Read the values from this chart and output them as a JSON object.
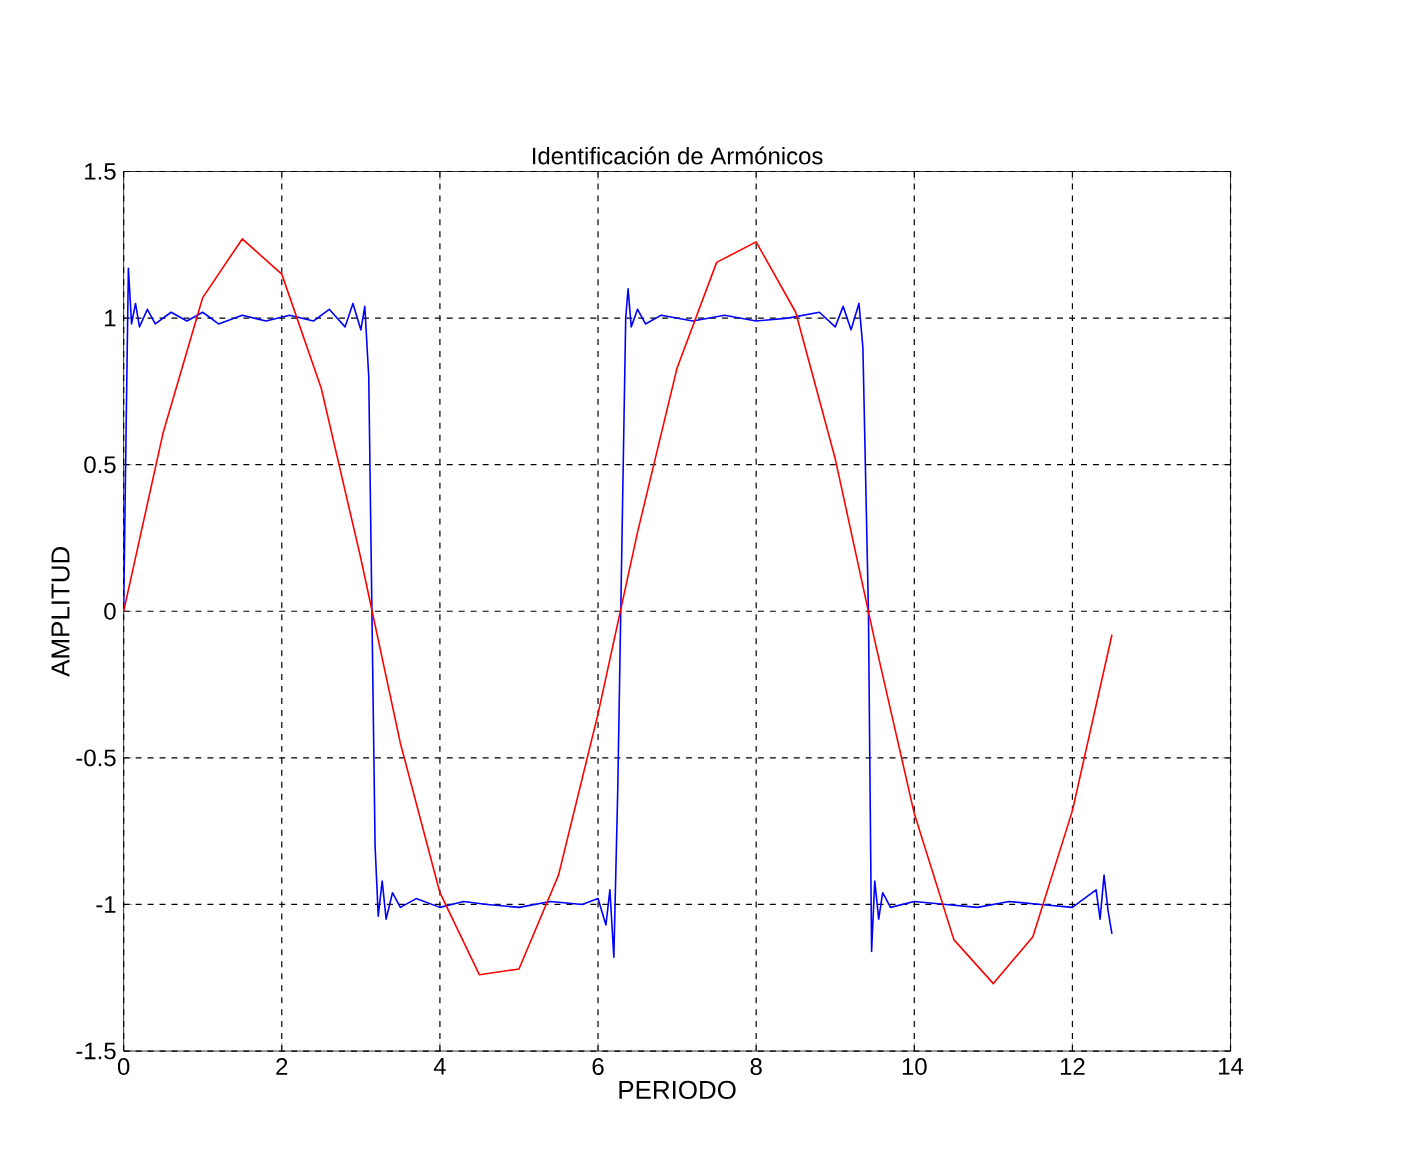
{
  "chart_data": {
    "type": "line",
    "title": "Identificación de Armónicos",
    "xlabel": "PERIODO",
    "ylabel": "AMPLITUD",
    "xlim": [
      0,
      14
    ],
    "ylim": [
      -1.5,
      1.5
    ],
    "xticks": [
      0,
      2,
      4,
      6,
      8,
      10,
      12,
      14
    ],
    "yticks": [
      -1.5,
      -1,
      -0.5,
      0,
      0.5,
      1,
      1.5
    ],
    "grid": true,
    "series": [
      {
        "color": "#0000ff",
        "x": [
          0,
          0.03,
          0.06,
          0.1,
          0.15,
          0.2,
          0.3,
          0.4,
          0.6,
          0.8,
          1.0,
          1.2,
          1.5,
          1.8,
          2.1,
          2.4,
          2.6,
          2.8,
          2.9,
          3.0,
          3.05,
          3.1,
          3.14,
          3.18,
          3.22,
          3.27,
          3.32,
          3.4,
          3.5,
          3.7,
          4.0,
          4.3,
          4.6,
          5.0,
          5.4,
          5.8,
          6.0,
          6.1,
          6.15,
          6.2,
          6.25,
          6.3,
          6.35,
          6.38,
          6.42,
          6.5,
          6.6,
          6.8,
          7.2,
          7.6,
          8.0,
          8.4,
          8.8,
          9.0,
          9.1,
          9.2,
          9.3,
          9.35,
          9.42,
          9.46,
          9.5,
          9.55,
          9.6,
          9.7,
          10.0,
          10.4,
          10.8,
          11.2,
          11.6,
          12.0,
          12.2,
          12.3,
          12.35,
          12.4,
          12.45,
          12.5
        ],
        "values": [
          0,
          0.6,
          1.17,
          0.98,
          1.05,
          0.97,
          1.03,
          0.98,
          1.02,
          0.99,
          1.02,
          0.98,
          1.01,
          0.99,
          1.01,
          0.99,
          1.03,
          0.97,
          1.05,
          0.96,
          1.04,
          0.8,
          0,
          -0.8,
          -1.04,
          -0.92,
          -1.05,
          -0.96,
          -1.01,
          -0.98,
          -1.01,
          -0.99,
          -1.0,
          -1.01,
          -0.99,
          -1.0,
          -0.98,
          -1.07,
          -0.95,
          -1.18,
          -0.6,
          0.2,
          1.0,
          1.1,
          0.97,
          1.03,
          0.98,
          1.01,
          0.99,
          1.01,
          0.99,
          1.0,
          1.02,
          0.97,
          1.04,
          0.96,
          1.05,
          0.9,
          0,
          -1.16,
          -0.92,
          -1.05,
          -0.96,
          -1.01,
          -0.99,
          -1.0,
          -1.01,
          -0.99,
          -1.0,
          -1.01,
          -0.97,
          -0.95,
          -1.05,
          -0.9,
          -1.02,
          -1.1
        ]
      },
      {
        "color": "#ff0000",
        "x": [
          0,
          0.5,
          1,
          1.5,
          2,
          2.5,
          3,
          3.5,
          4,
          4.5,
          5,
          5.5,
          6,
          6.5,
          7,
          7.5,
          8,
          8.5,
          9,
          9.5,
          10,
          10.5,
          11,
          11.5,
          12,
          12.5
        ],
        "values": [
          0,
          0.61,
          1.07,
          1.27,
          1.15,
          0.76,
          0.18,
          -0.45,
          -0.96,
          -1.24,
          -1.22,
          -0.9,
          -0.35,
          0.27,
          0.83,
          1.19,
          1.26,
          1.02,
          0.52,
          -0.1,
          -0.69,
          -1.12,
          -1.27,
          -1.11,
          -0.68,
          -0.08
        ]
      }
    ]
  }
}
